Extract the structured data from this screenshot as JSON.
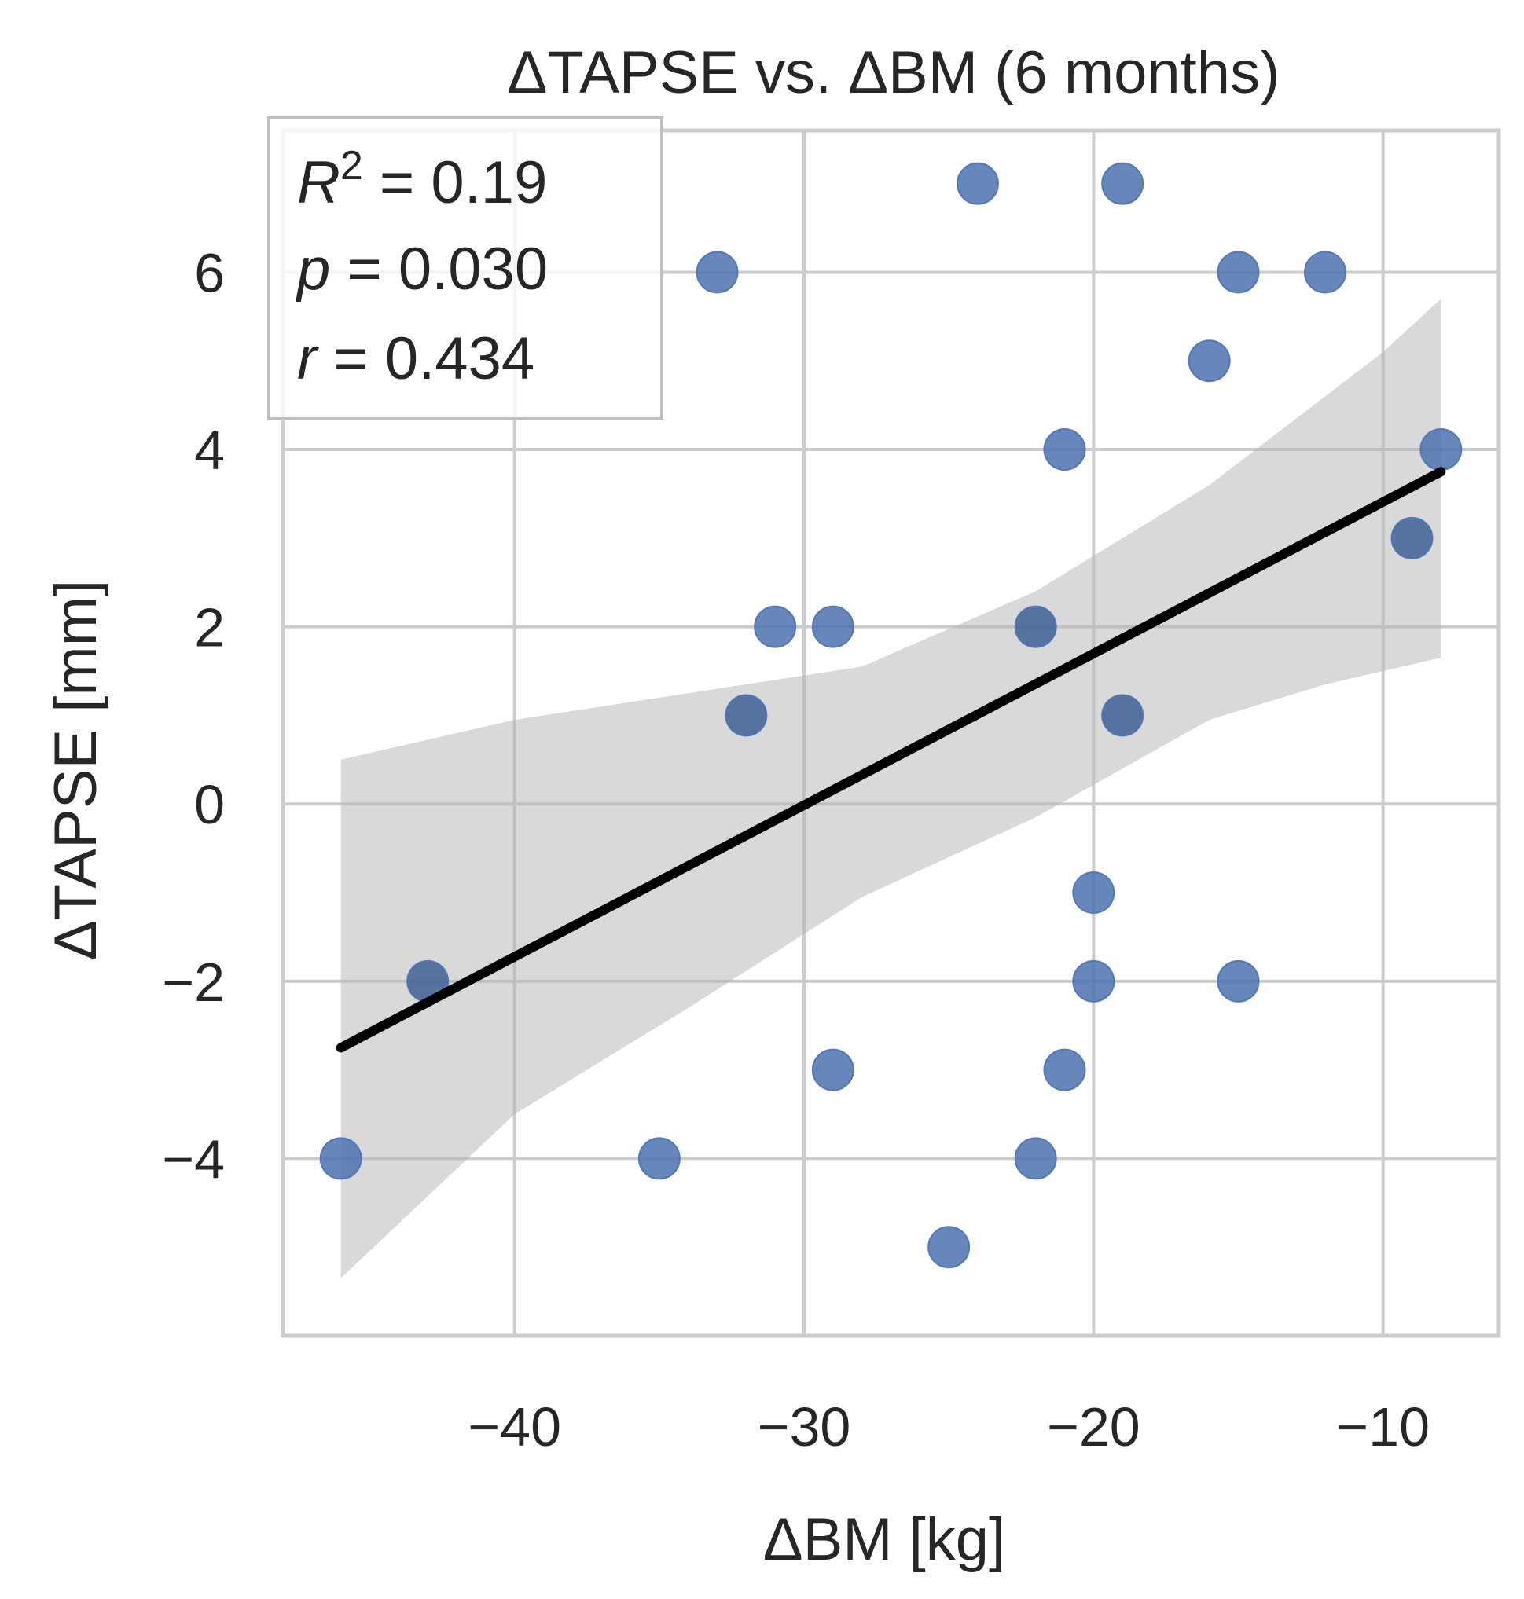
{
  "chart_data": {
    "type": "scatter",
    "title": "ΔTAPSE vs. ΔBM (6 months)",
    "xlabel": "ΔBM [kg]",
    "ylabel": "ΔTAPSE [mm]",
    "xlim": [
      -48,
      -6
    ],
    "ylim": [
      -6,
      7.6
    ],
    "xticks": [
      -40,
      -30,
      -20,
      -10
    ],
    "xtick_labels": [
      "−40",
      "−30",
      "−20",
      "−10"
    ],
    "yticks": [
      -4,
      -2,
      0,
      2,
      4,
      6
    ],
    "ytick_labels": [
      "−4",
      "−2",
      "0",
      "2",
      "4",
      "6"
    ],
    "grid": true,
    "point_color": "#4c72b0",
    "line_color": "#000000",
    "band_color": "#b3b3b3",
    "points": [
      {
        "x": -46,
        "y": -4
      },
      {
        "x": -43,
        "y": -2
      },
      {
        "x": -35,
        "y": -4
      },
      {
        "x": -33,
        "y": 6
      },
      {
        "x": -32,
        "y": 1
      },
      {
        "x": -31,
        "y": 2
      },
      {
        "x": -29,
        "y": 2
      },
      {
        "x": -29,
        "y": -3
      },
      {
        "x": -25,
        "y": -5
      },
      {
        "x": -24,
        "y": 7
      },
      {
        "x": -22,
        "y": 2
      },
      {
        "x": -22,
        "y": -4
      },
      {
        "x": -21,
        "y": 4
      },
      {
        "x": -21,
        "y": -3
      },
      {
        "x": -20,
        "y": -1
      },
      {
        "x": -20,
        "y": -2
      },
      {
        "x": -19,
        "y": 7
      },
      {
        "x": -19,
        "y": 1
      },
      {
        "x": -16,
        "y": 5
      },
      {
        "x": -15,
        "y": 6
      },
      {
        "x": -15,
        "y": -2
      },
      {
        "x": -12,
        "y": 6
      },
      {
        "x": -9,
        "y": 3
      },
      {
        "x": -8,
        "y": 4
      }
    ],
    "darker_points": [
      {
        "x": -43,
        "y": -2
      },
      {
        "x": -32,
        "y": 1
      },
      {
        "x": -22,
        "y": 2
      },
      {
        "x": -19,
        "y": 1
      },
      {
        "x": -9,
        "y": 3
      }
    ],
    "regression_line": {
      "x": [
        -46,
        -8
      ],
      "y": [
        -2.75,
        3.75
      ]
    },
    "confidence_band": {
      "x": [
        -46,
        -40,
        -34,
        -28,
        -22,
        -16,
        -12,
        -10,
        -8
      ],
      "upper": [
        0.5,
        0.95,
        1.25,
        1.55,
        2.4,
        3.6,
        4.6,
        5.1,
        5.7
      ],
      "lower": [
        -5.35,
        -3.5,
        -2.3,
        -1.05,
        -0.15,
        0.95,
        1.35,
        1.5,
        1.65
      ]
    },
    "annotation": {
      "r2_label": "R",
      "r2_sup": "2",
      "r2_value": " = 0.19",
      "p_label": "p",
      "p_value": " = 0.030",
      "r_label": "r",
      "r_value": " = 0.434"
    }
  }
}
